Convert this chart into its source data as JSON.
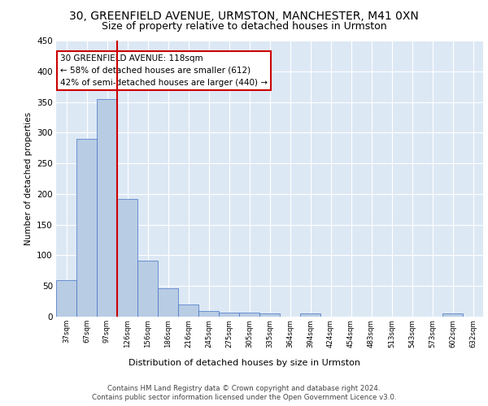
{
  "title_line1": "30, GREENFIELD AVENUE, URMSTON, MANCHESTER, M41 0XN",
  "title_line2": "Size of property relative to detached houses in Urmston",
  "xlabel": "Distribution of detached houses by size in Urmston",
  "ylabel": "Number of detached properties",
  "bar_values": [
    59,
    290,
    355,
    192,
    91,
    46,
    20,
    9,
    6,
    6,
    5,
    0,
    5,
    0,
    0,
    0,
    0,
    0,
    0,
    5,
    0
  ],
  "bar_labels": [
    "37sqm",
    "67sqm",
    "97sqm",
    "126sqm",
    "156sqm",
    "186sqm",
    "216sqm",
    "245sqm",
    "275sqm",
    "305sqm",
    "335sqm",
    "364sqm",
    "394sqm",
    "424sqm",
    "454sqm",
    "483sqm",
    "513sqm",
    "543sqm",
    "573sqm",
    "602sqm",
    "632sqm"
  ],
  "bar_color": "#b8cce4",
  "bar_edge_color": "#4472c4",
  "background_color": "#dde8f5",
  "grid_color": "#ffffff",
  "vline_x": 2.5,
  "annotation_text": "30 GREENFIELD AVENUE: 118sqm\n← 58% of detached houses are smaller (612)\n42% of semi-detached houses are larger (440) →",
  "annotation_box_color": "#ffffff",
  "annotation_box_edge": "#cc0000",
  "vline_color": "#cc0000",
  "ylim": [
    0,
    450
  ],
  "yticks": [
    0,
    50,
    100,
    150,
    200,
    250,
    300,
    350,
    400,
    450
  ],
  "footer_line1": "Contains HM Land Registry data © Crown copyright and database right 2024.",
  "footer_line2": "Contains public sector information licensed under the Open Government Licence v3.0."
}
